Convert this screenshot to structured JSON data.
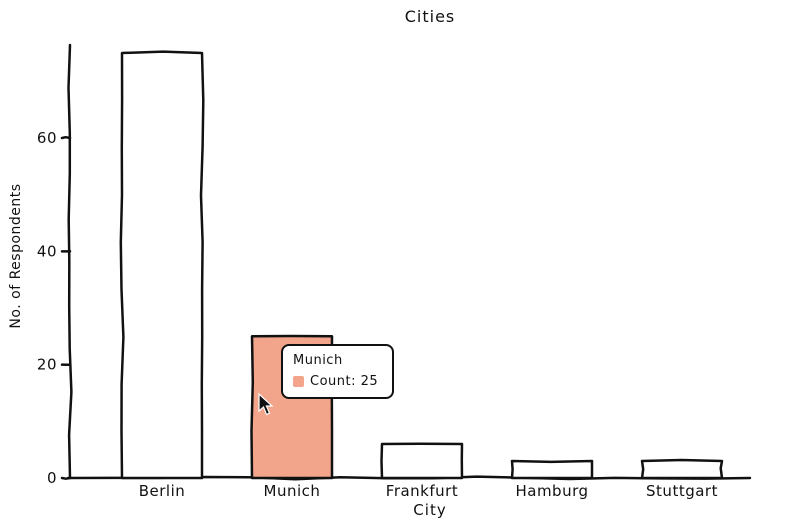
{
  "chart_data": {
    "type": "bar",
    "title": "Cities",
    "xlabel": "City",
    "ylabel": "No. of Respondents",
    "categories": [
      "Berlin",
      "Munich",
      "Frankfurt",
      "Hamburg",
      "Stuttgart"
    ],
    "values": [
      75,
      25,
      6,
      3,
      3
    ],
    "ylim": [
      0,
      80
    ],
    "yticks": [
      0,
      20,
      40,
      60
    ],
    "grid": false,
    "legend_position": "none",
    "highlight_index": 1,
    "colors": {
      "bar_default": "#ffffff",
      "bar_highlight": "#f2a58b",
      "stroke": "#111111",
      "background": "#ffffff"
    }
  },
  "tooltip": {
    "title": "Munich",
    "value_label": "Count: 25",
    "swatch_color": "#f2a58b"
  }
}
